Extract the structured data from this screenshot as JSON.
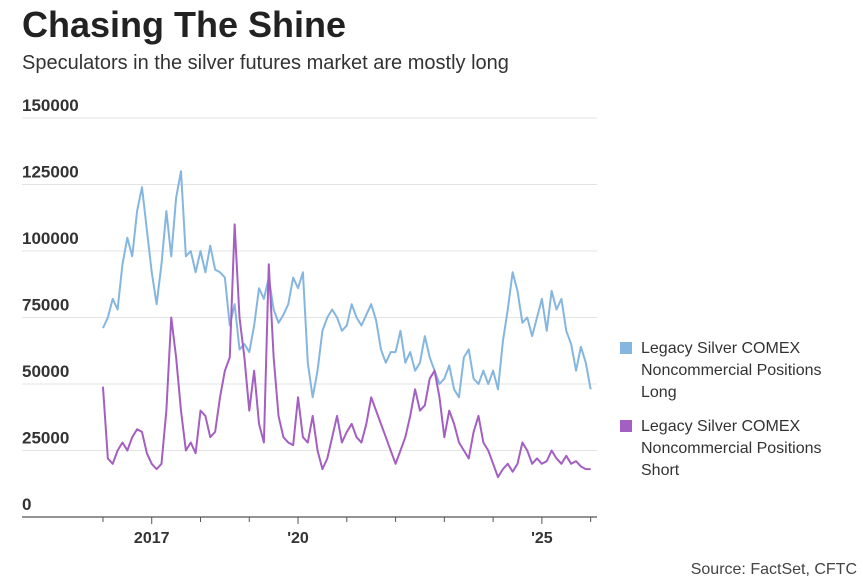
{
  "chart_data": {
    "type": "line",
    "title": "Chasing The Shine",
    "subtitle": "Speculators in the silver futures market are mostly long",
    "source": "Source: FactSet, CFTC",
    "x": [
      2016.0,
      2016.1,
      2016.2,
      2016.3,
      2016.4,
      2016.5,
      2016.6,
      2016.7,
      2016.8,
      2016.9,
      2017.0,
      2017.1,
      2017.2,
      2017.3,
      2017.4,
      2017.5,
      2017.6,
      2017.7,
      2017.8,
      2017.9,
      2018.0,
      2018.1,
      2018.2,
      2018.3,
      2018.4,
      2018.5,
      2018.6,
      2018.7,
      2018.8,
      2018.9,
      2019.0,
      2019.1,
      2019.2,
      2019.3,
      2019.4,
      2019.5,
      2019.6,
      2019.7,
      2019.8,
      2019.9,
      2020.0,
      2020.1,
      2020.2,
      2020.3,
      2020.4,
      2020.5,
      2020.6,
      2020.7,
      2020.8,
      2020.9,
      2021.0,
      2021.1,
      2021.2,
      2021.3,
      2021.4,
      2021.5,
      2021.6,
      2021.7,
      2021.8,
      2021.9,
      2022.0,
      2022.1,
      2022.2,
      2022.3,
      2022.4,
      2022.5,
      2022.6,
      2022.7,
      2022.8,
      2022.9,
      2023.0,
      2023.1,
      2023.2,
      2023.3,
      2023.4,
      2023.5,
      2023.6,
      2023.7,
      2023.8,
      2023.9,
      2024.0,
      2024.1,
      2024.2,
      2024.3,
      2024.4,
      2024.5,
      2024.6,
      2024.7,
      2024.8,
      2024.9,
      2025.0,
      2025.1,
      2025.2,
      2025.3,
      2025.4,
      2025.5,
      2025.6,
      2025.7,
      2025.8,
      2025.9,
      2026.0
    ],
    "series": [
      {
        "name": "Legacy Silver COMEX Noncommercial Positions Long",
        "color": "#85b6e0",
        "values": [
          71000,
          75000,
          82000,
          78000,
          95000,
          105000,
          98000,
          115000,
          124000,
          108000,
          92000,
          80000,
          95000,
          115000,
          98000,
          120000,
          130000,
          98000,
          100000,
          92000,
          100000,
          92000,
          102000,
          93000,
          92000,
          90000,
          72000,
          80000,
          63000,
          65000,
          62000,
          72000,
          86000,
          82000,
          90000,
          78000,
          73000,
          76000,
          80000,
          90000,
          86000,
          92000,
          58000,
          45000,
          55000,
          70000,
          75000,
          78000,
          75000,
          70000,
          72000,
          80000,
          75000,
          72000,
          76000,
          80000,
          74000,
          63000,
          58000,
          62000,
          62000,
          70000,
          58000,
          62000,
          55000,
          58000,
          68000,
          60000,
          55000,
          50000,
          52000,
          57000,
          48000,
          45000,
          60000,
          63000,
          52000,
          50000,
          55000,
          50000,
          55000,
          48000,
          66000,
          78000,
          92000,
          85000,
          73000,
          75000,
          68000,
          75000,
          82000,
          70000,
          85000,
          78000,
          82000,
          70000,
          65000,
          55000,
          64000,
          58000,
          48000
        ]
      },
      {
        "name": "Legacy Silver COMEX Noncommercial Positions Short",
        "color": "#a45fc2",
        "values": [
          49000,
          22000,
          20000,
          25000,
          28000,
          25000,
          30000,
          33000,
          32000,
          24000,
          20000,
          18000,
          20000,
          40000,
          75000,
          60000,
          40000,
          25000,
          28000,
          24000,
          40000,
          38000,
          30000,
          32000,
          45000,
          55000,
          60000,
          110000,
          75000,
          60000,
          40000,
          55000,
          35000,
          28000,
          95000,
          60000,
          38000,
          30000,
          28000,
          27000,
          45000,
          30000,
          28000,
          38000,
          25000,
          18000,
          22000,
          30000,
          38000,
          28000,
          32000,
          35000,
          30000,
          28000,
          35000,
          45000,
          40000,
          35000,
          30000,
          25000,
          20000,
          25000,
          30000,
          38000,
          48000,
          40000,
          42000,
          52000,
          55000,
          45000,
          30000,
          40000,
          35000,
          28000,
          25000,
          22000,
          32000,
          38000,
          28000,
          25000,
          20000,
          15000,
          18000,
          20000,
          17000,
          20000,
          28000,
          25000,
          20000,
          22000,
          20000,
          21000,
          25000,
          22000,
          20000,
          23000,
          20000,
          21000,
          19000,
          18000,
          18000
        ]
      }
    ],
    "xlim": [
      2014.34,
      2026.13
    ],
    "xticks": [
      {
        "value": 2017,
        "label": "2017"
      },
      {
        "value": 2020,
        "label": "'20"
      },
      {
        "value": 2025,
        "label": "'25"
      }
    ],
    "xminor_ticks": [
      2016,
      2018,
      2019,
      2021,
      2022,
      2023,
      2024,
      2026
    ],
    "ylim": [
      0,
      150000
    ],
    "yticks": [
      0,
      25000,
      50000,
      75000,
      100000,
      125000,
      150000
    ],
    "grid": true
  }
}
